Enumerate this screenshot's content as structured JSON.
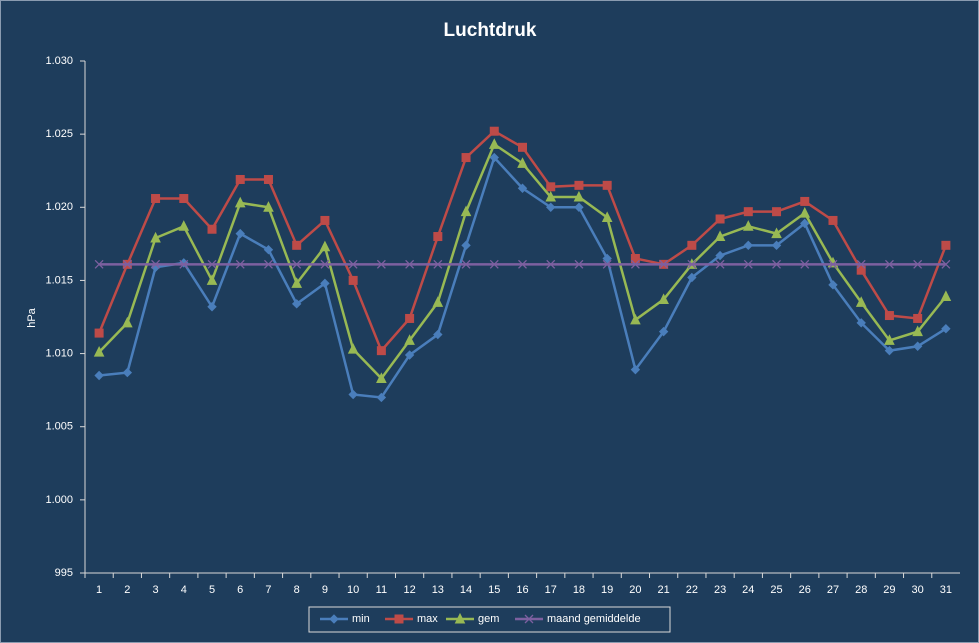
{
  "chart_data": {
    "type": "line",
    "title": "Luchtdruk",
    "y_label": "hPa",
    "categories": [
      1,
      2,
      3,
      4,
      5,
      6,
      7,
      8,
      9,
      10,
      11,
      12,
      13,
      14,
      15,
      16,
      17,
      18,
      19,
      20,
      21,
      22,
      23,
      24,
      25,
      26,
      27,
      28,
      29,
      30,
      31
    ],
    "series": [
      {
        "name": "min",
        "color": "#4a7ebb",
        "marker": "diamond",
        "values": [
          1008.5,
          1008.7,
          1015.9,
          1016.2,
          1013.2,
          1018.2,
          1017.1,
          1013.4,
          1014.8,
          1007.2,
          1007.0,
          1009.9,
          1011.3,
          1017.4,
          1023.4,
          1021.3,
          1020.0,
          1020.0,
          1016.5,
          1008.9,
          1011.5,
          1015.2,
          1016.7,
          1017.4,
          1017.4,
          1018.9,
          1014.7,
          1012.1,
          1010.2,
          1010.5,
          1011.7
        ]
      },
      {
        "name": "max",
        "color": "#be4b48",
        "marker": "square",
        "values": [
          1011.4,
          1016.1,
          1020.6,
          1020.6,
          1018.5,
          1021.9,
          1021.9,
          1017.4,
          1019.1,
          1015.0,
          1010.2,
          1012.4,
          1018.0,
          1023.4,
          1025.2,
          1024.1,
          1021.4,
          1021.5,
          1021.5,
          1016.5,
          1016.1,
          1017.4,
          1019.2,
          1019.7,
          1019.7,
          1020.4,
          1019.1,
          1015.7,
          1012.6,
          1012.4,
          1017.4
        ]
      },
      {
        "name": "gem",
        "color": "#98b954",
        "marker": "triangle",
        "values": [
          1010.1,
          1012.1,
          1017.9,
          1018.7,
          1015.0,
          1020.3,
          1020.0,
          1014.8,
          1017.3,
          1010.3,
          1008.3,
          1010.9,
          1013.5,
          1019.7,
          1024.3,
          1023.0,
          1020.7,
          1020.7,
          1019.3,
          1012.3,
          1013.7,
          1016.1,
          1018.0,
          1018.7,
          1018.2,
          1019.6,
          1016.2,
          1013.5,
          1010.9,
          1011.5,
          1013.9
        ]
      },
      {
        "name": "maand gemiddelde",
        "color": "#7d60a0",
        "marker": "x",
        "values": [
          1016.1,
          1016.1,
          1016.1,
          1016.1,
          1016.1,
          1016.1,
          1016.1,
          1016.1,
          1016.1,
          1016.1,
          1016.1,
          1016.1,
          1016.1,
          1016.1,
          1016.1,
          1016.1,
          1016.1,
          1016.1,
          1016.1,
          1016.1,
          1016.1,
          1016.1,
          1016.1,
          1016.1,
          1016.1,
          1016.1,
          1016.1,
          1016.1,
          1016.1,
          1016.1,
          1016.1
        ]
      }
    ],
    "ylim": [
      995,
      1030
    ],
    "yticks": [
      995,
      {
        "value": 1000,
        "label": "1.000"
      },
      {
        "value": 1005,
        "label": "1.005"
      },
      {
        "value": 1010,
        "label": "1.010"
      },
      {
        "value": 1015,
        "label": "1.015"
      },
      {
        "value": 1020,
        "label": "1.020"
      },
      {
        "value": 1025,
        "label": "1.025"
      },
      {
        "value": 1030,
        "label": "1.030"
      }
    ],
    "grid": false,
    "legend": "bottom"
  }
}
